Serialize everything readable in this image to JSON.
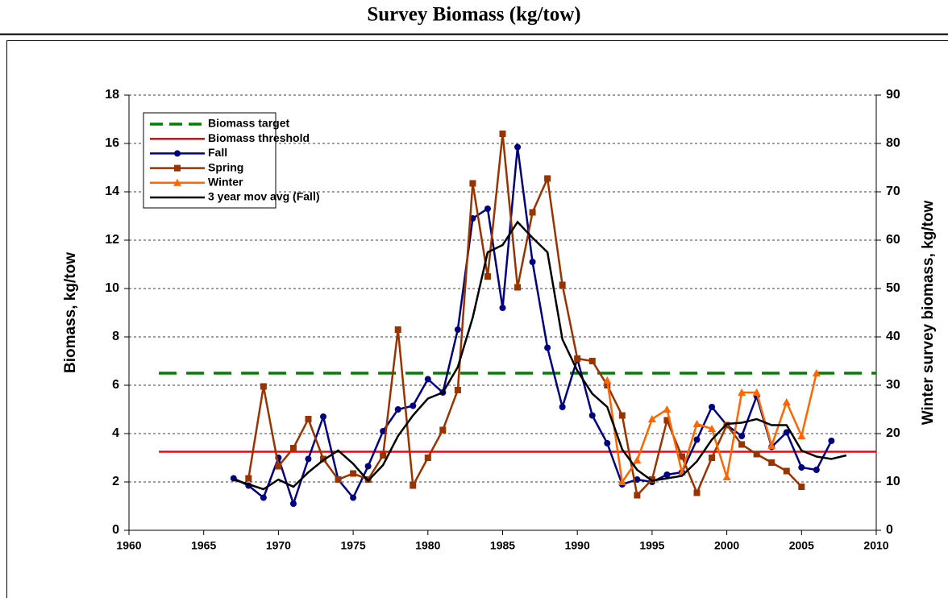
{
  "chart_data": {
    "type": "line",
    "title": "Survey Biomass (kg/tow)",
    "ylabel": "Biomass, kg/tow",
    "y2label": "Winter survey biomass, kg/tow",
    "xlim": [
      1960,
      2010
    ],
    "xticks": [
      1960,
      1965,
      1970,
      1975,
      1980,
      1985,
      1990,
      1995,
      2000,
      2005,
      2010
    ],
    "ylim": [
      0,
      18
    ],
    "yticks": [
      0,
      2,
      4,
      6,
      8,
      10,
      12,
      14,
      16,
      18
    ],
    "y2lim": [
      0,
      90
    ],
    "y2ticks": [
      0,
      10,
      20,
      30,
      40,
      50,
      60,
      70,
      80,
      90
    ],
    "grid": true,
    "legend": "top-left",
    "series": [
      {
        "name": "Biomass target",
        "color": "#008000",
        "dash": true,
        "marker": "none",
        "x": [
          1962,
          2010
        ],
        "values": [
          6.5,
          6.5
        ]
      },
      {
        "name": "Biomass threshold",
        "color": "#ff0000",
        "marker": "none",
        "x": [
          1962,
          2010
        ],
        "values": [
          3.25,
          3.25
        ]
      },
      {
        "name": "Fall",
        "color": "#000080",
        "marker": "circle",
        "x": [
          1967,
          1968,
          1969,
          1970,
          1971,
          1972,
          1973,
          1974,
          1975,
          1976,
          1977,
          1978,
          1979,
          1980,
          1981,
          1982,
          1983,
          1984,
          1985,
          1986,
          1987,
          1988,
          1989,
          1990,
          1991,
          1992,
          1993,
          1994,
          1995,
          1996,
          1997,
          1998,
          1999,
          2000,
          2001,
          2002,
          2003,
          2004,
          2005,
          2006,
          2007
        ],
        "values": [
          2.15,
          1.85,
          1.35,
          3.0,
          1.1,
          2.95,
          4.7,
          2.1,
          1.35,
          2.65,
          4.1,
          5.0,
          5.15,
          6.25,
          5.7,
          8.3,
          12.9,
          13.3,
          9.2,
          15.85,
          11.1,
          7.55,
          5.1,
          7.1,
          4.75,
          3.6,
          1.9,
          2.1,
          2.0,
          2.3,
          2.4,
          3.75,
          5.1,
          4.35,
          3.9,
          5.55,
          3.45,
          4.05,
          2.6,
          2.5,
          3.7
        ]
      },
      {
        "name": "Spring",
        "color": "#993300",
        "marker": "square",
        "x": [
          1968,
          1969,
          1970,
          1971,
          1972,
          1973,
          1974,
          1975,
          1976,
          1977,
          1978,
          1979,
          1980,
          1981,
          1982,
          1983,
          1984,
          1985,
          1986,
          1987,
          1988,
          1989,
          1990,
          1991,
          1992,
          1993,
          1994,
          1995,
          1996,
          1997,
          1998,
          1999,
          2000,
          2001,
          2002,
          2003,
          2004,
          2005
        ],
        "values": [
          2.15,
          5.95,
          2.65,
          3.4,
          4.6,
          2.95,
          2.1,
          2.35,
          2.1,
          3.1,
          8.3,
          1.85,
          3.0,
          4.15,
          5.8,
          14.35,
          10.5,
          16.4,
          10.05,
          13.15,
          14.55,
          10.15,
          7.1,
          7.0,
          6.0,
          4.75,
          1.45,
          2.1,
          4.55,
          3.05,
          1.55,
          3.0,
          4.35,
          3.55,
          3.15,
          2.8,
          2.45,
          1.8
        ]
      },
      {
        "name": "Winter",
        "color": "#ff6600",
        "marker": "triangle",
        "axis": "y2",
        "x": [
          1992,
          1993,
          1994,
          1995,
          1996,
          1997,
          1998,
          1999,
          2000,
          2001,
          2002,
          2003,
          2004,
          2005,
          2006
        ],
        "values": [
          31,
          10,
          14.5,
          23,
          25,
          12,
          22,
          21,
          11,
          28.5,
          28.5,
          17.5,
          26.5,
          19.5,
          32.5
        ]
      },
      {
        "name": "3 year mov avg (Fall)",
        "color": "#000000",
        "marker": "none",
        "x": [
          1967,
          1968,
          1969,
          1970,
          1971,
          1972,
          1973,
          1974,
          1975,
          1976,
          1977,
          1978,
          1979,
          1980,
          1981,
          1982,
          1983,
          1984,
          1985,
          1986,
          1987,
          1988,
          1989,
          1990,
          1991,
          1992,
          1993,
          1994,
          1995,
          1996,
          1997,
          1998,
          1999,
          2000,
          2001,
          2002,
          2003,
          2004,
          2005,
          2006,
          2007,
          2008
        ],
        "values": [
          2.1,
          1.9,
          1.7,
          2.1,
          1.8,
          2.4,
          2.9,
          3.3,
          2.75,
          2.05,
          2.7,
          3.9,
          4.75,
          5.45,
          5.7,
          6.75,
          8.8,
          11.5,
          11.8,
          12.75,
          12.1,
          11.5,
          7.9,
          6.6,
          5.65,
          5.1,
          3.35,
          2.5,
          2.05,
          2.15,
          2.25,
          2.85,
          3.75,
          4.4,
          4.45,
          4.6,
          4.35,
          4.35,
          3.3,
          3.05,
          2.95,
          3.1
        ]
      }
    ]
  }
}
